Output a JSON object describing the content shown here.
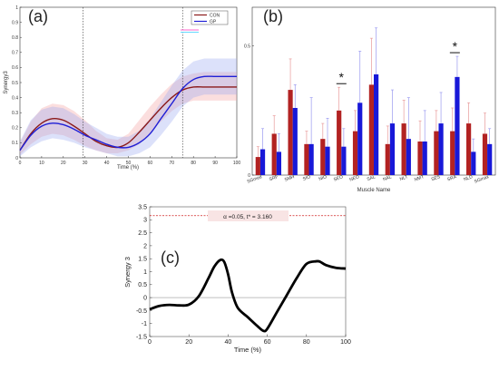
{
  "panels": {
    "a": "(a)",
    "b": "(b)",
    "c": "(c)"
  },
  "chart_data": [
    {
      "panel": "(a)",
      "type": "line",
      "ylabel": "Synergy3",
      "xlabel": "Time (%)",
      "xlim": [
        0,
        100
      ],
      "ylim": [
        0,
        1
      ],
      "xticks": [
        "0",
        "10",
        "20",
        "30",
        "40",
        "50",
        "60",
        "70",
        "80",
        "90",
        "100"
      ],
      "yticks": [
        "0",
        "0.1",
        "0.2",
        "0.3",
        "0.4",
        "0.5",
        "0.6",
        "0.7",
        "0.8",
        "0.9",
        "1"
      ],
      "vlines": [
        29,
        75
      ],
      "x": [
        0,
        5,
        10,
        15,
        20,
        25,
        30,
        35,
        40,
        45,
        50,
        55,
        60,
        65,
        70,
        75,
        80,
        85,
        90,
        95,
        100
      ],
      "series": [
        {
          "name": "CON",
          "color": "#8b1a1a",
          "band_color": "#f4a0a0",
          "values": [
            0.05,
            0.16,
            0.23,
            0.26,
            0.25,
            0.21,
            0.16,
            0.11,
            0.08,
            0.07,
            0.1,
            0.17,
            0.25,
            0.33,
            0.4,
            0.45,
            0.47,
            0.47,
            0.47,
            0.47,
            0.47
          ],
          "upper": [
            0.1,
            0.24,
            0.33,
            0.36,
            0.35,
            0.31,
            0.25,
            0.18,
            0.13,
            0.12,
            0.16,
            0.25,
            0.34,
            0.42,
            0.49,
            0.54,
            0.56,
            0.57,
            0.57,
            0.57,
            0.57
          ],
          "lower": [
            0.02,
            0.09,
            0.14,
            0.16,
            0.15,
            0.12,
            0.08,
            0.05,
            0.03,
            0.03,
            0.05,
            0.09,
            0.16,
            0.24,
            0.31,
            0.36,
            0.38,
            0.38,
            0.38,
            0.38,
            0.38
          ]
        },
        {
          "name": "GP",
          "color": "#1f1fd6",
          "band_color": "#9aa8f0",
          "values": [
            0.05,
            0.15,
            0.21,
            0.23,
            0.22,
            0.19,
            0.15,
            0.12,
            0.09,
            0.07,
            0.07,
            0.1,
            0.16,
            0.26,
            0.36,
            0.46,
            0.52,
            0.54,
            0.54,
            0.54,
            0.54
          ],
          "upper": [
            0.11,
            0.25,
            0.32,
            0.34,
            0.33,
            0.29,
            0.24,
            0.2,
            0.16,
            0.14,
            0.14,
            0.18,
            0.26,
            0.37,
            0.48,
            0.58,
            0.64,
            0.66,
            0.66,
            0.66,
            0.66
          ],
          "lower": [
            0.01,
            0.07,
            0.11,
            0.13,
            0.12,
            0.1,
            0.07,
            0.05,
            0.03,
            0.01,
            0.01,
            0.03,
            0.07,
            0.15,
            0.24,
            0.34,
            0.4,
            0.42,
            0.42,
            0.42,
            0.42
          ]
        }
      ],
      "legend": {
        "placement": "top-right",
        "entries": [
          "CON",
          "GP"
        ]
      }
    },
    {
      "panel": "(b)",
      "type": "bar",
      "xlabel": "Muscle Name",
      "yticks": [
        "0",
        "0.5"
      ],
      "ylim": [
        0,
        0.65
      ],
      "categories": [
        "SGmed",
        "SRF",
        "SMH",
        "SIO",
        "NIO",
        "SEO",
        "NEO",
        "SAL",
        "NAL",
        "NLT",
        "NMT",
        "SES",
        "SRA",
        "NLD",
        "SGmax"
      ],
      "series": [
        {
          "name": "CON",
          "color": "#b22222",
          "values": [
            0.07,
            0.16,
            0.33,
            0.12,
            0.14,
            0.25,
            0.17,
            0.35,
            0.12,
            0.2,
            0.13,
            0.17,
            0.17,
            0.2,
            0.16
          ],
          "errors": [
            0.04,
            0.07,
            0.12,
            0.05,
            0.06,
            0.09,
            0.08,
            0.18,
            0.07,
            0.09,
            0.08,
            0.08,
            0.09,
            0.08,
            0.08
          ]
        },
        {
          "name": "GP",
          "color": "#1818d8",
          "values": [
            0.1,
            0.09,
            0.26,
            0.12,
            0.11,
            0.11,
            0.28,
            0.39,
            0.2,
            0.14,
            0.13,
            0.2,
            0.38,
            0.09,
            0.12
          ],
          "errors": [
            0.08,
            0.07,
            0.09,
            0.18,
            0.11,
            0.07,
            0.2,
            0.18,
            0.13,
            0.16,
            0.12,
            0.12,
            0.08,
            0.05,
            0.06
          ]
        }
      ],
      "significance": [
        {
          "category": "SEO",
          "marker": "*"
        },
        {
          "category": "SRA",
          "marker": "*"
        }
      ]
    },
    {
      "panel": "(c)",
      "type": "line",
      "ylabel": "Synergy 3",
      "xlabel": "Time (%)",
      "xlim": [
        0,
        100
      ],
      "ylim": [
        -1.5,
        3.5
      ],
      "xticks": [
        "0",
        "20",
        "40",
        "60",
        "80",
        "100"
      ],
      "yticks": [
        "-1.5",
        "-1",
        "-0.5",
        "0",
        "0.5",
        "1",
        "1.5",
        "2",
        "2.5",
        "3",
        "3.5"
      ],
      "threshold": 3.16,
      "annotation": "α  =0.05,     t* = 3.160",
      "x": [
        0,
        5,
        10,
        15,
        20,
        25,
        30,
        33,
        36,
        38,
        40,
        42,
        45,
        50,
        55,
        58,
        60,
        65,
        70,
        75,
        80,
        85,
        87,
        90,
        95,
        100
      ],
      "values": [
        -0.45,
        -0.32,
        -0.28,
        -0.3,
        -0.27,
        0.05,
        0.75,
        1.2,
        1.45,
        1.38,
        0.9,
        0.2,
        -0.4,
        -0.75,
        -1.1,
        -1.28,
        -1.2,
        -0.55,
        0.1,
        0.75,
        1.3,
        1.4,
        1.38,
        1.25,
        1.15,
        1.12
      ]
    }
  ]
}
